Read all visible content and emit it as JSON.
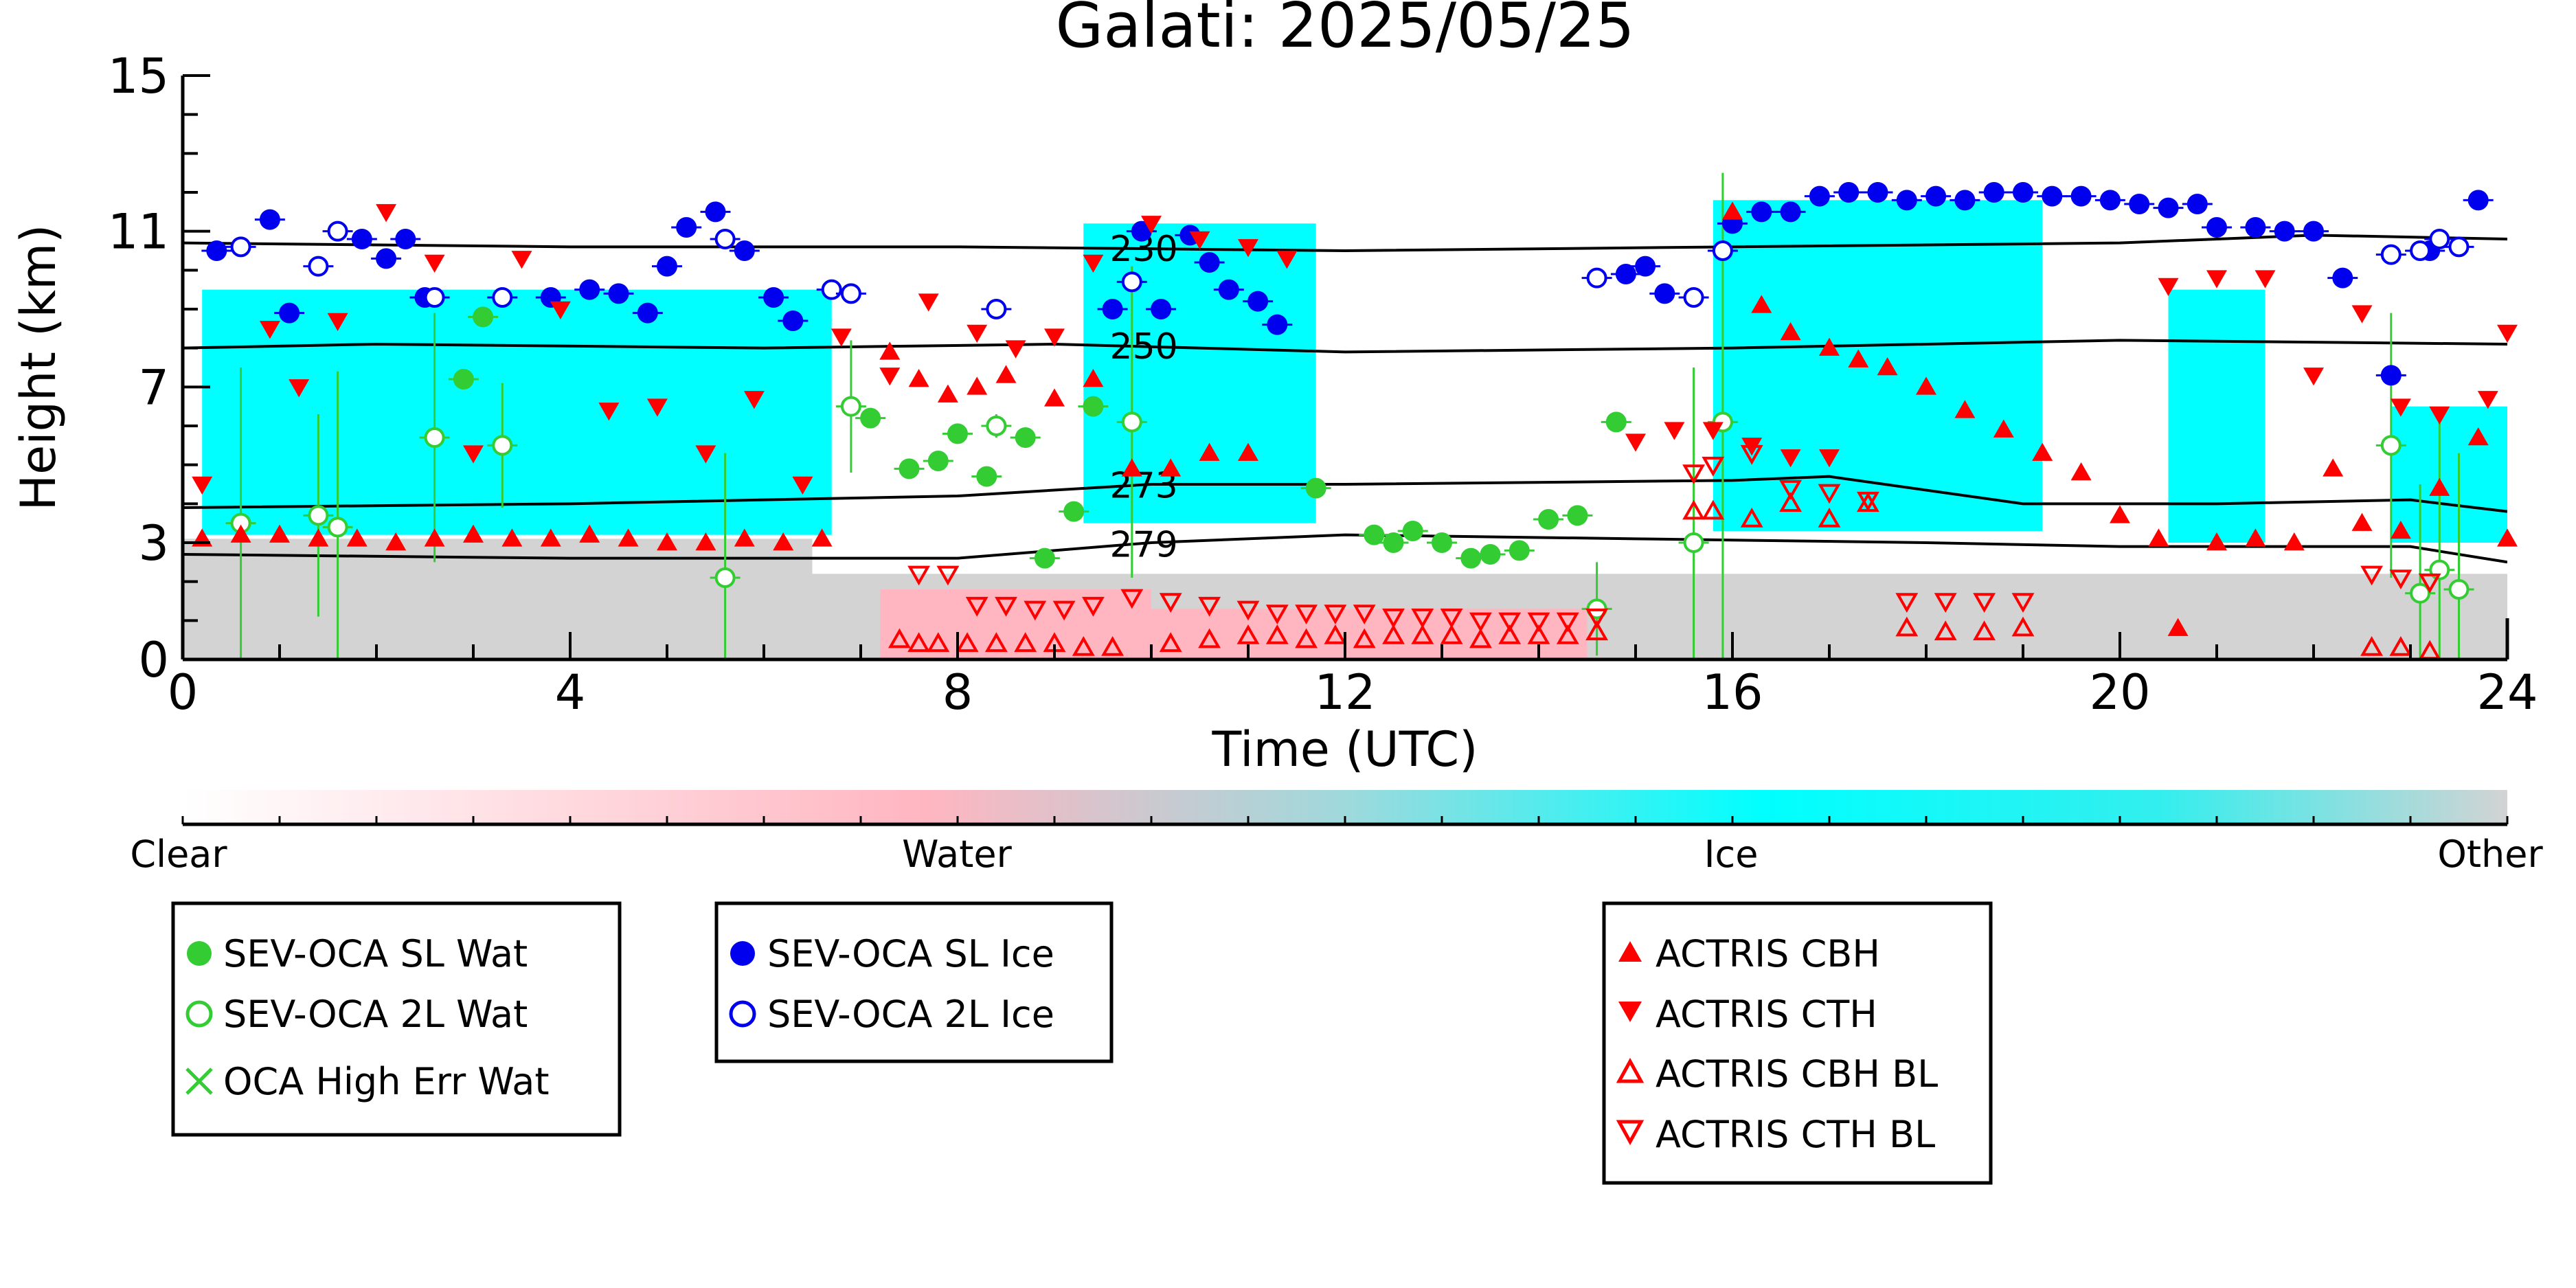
{
  "chart_data": {
    "type": "scatter",
    "title": "Galati: 2025/05/25",
    "xlabel": "Time (UTC)",
    "ylabel": "Height (km)",
    "xlim": [
      0,
      24
    ],
    "ylim": [
      0,
      15
    ],
    "xticks": [
      "0",
      "4",
      "8",
      "12",
      "16",
      "20",
      "24"
    ],
    "yticks": [
      "0",
      "3",
      "7",
      "11",
      "15"
    ],
    "colors": {
      "clear": "#ffffff",
      "water": "#ffb6c1",
      "ice": "#00ffff",
      "other": "#d3d3d3",
      "wat": "#33cc33",
      "ice_marker": "#0000ee",
      "actris": "#ff0000"
    },
    "colorbar": {
      "labels": [
        "Clear",
        "Water",
        "Ice",
        "Other"
      ]
    },
    "temperature_contours": [
      {
        "label": "230",
        "x": [
          0,
          4,
          8,
          12,
          16,
          20,
          22,
          24
        ],
        "y": [
          10.7,
          10.6,
          10.6,
          10.5,
          10.6,
          10.7,
          10.9,
          10.8
        ]
      },
      {
        "label": "250",
        "x": [
          0,
          2,
          6,
          9,
          12,
          16,
          20,
          24
        ],
        "y": [
          8.0,
          8.1,
          8.0,
          8.1,
          7.9,
          8.0,
          8.2,
          8.1
        ]
      },
      {
        "label": "273",
        "x": [
          0,
          4,
          8,
          10,
          12,
          16,
          17,
          19,
          21,
          23,
          24
        ],
        "y": [
          3.9,
          4.0,
          4.2,
          4.5,
          4.5,
          4.6,
          4.7,
          4.0,
          4.0,
          4.1,
          3.8
        ]
      },
      {
        "label": "279",
        "x": [
          0,
          4,
          8,
          10,
          12,
          15,
          18,
          20,
          23,
          24
        ],
        "y": [
          2.7,
          2.6,
          2.6,
          3.0,
          3.2,
          3.1,
          3.0,
          2.9,
          2.9,
          2.5
        ]
      }
    ],
    "classification_regions": [
      {
        "class": "other",
        "t": [
          0,
          6.5
        ],
        "ytop": 3.1
      },
      {
        "class": "other",
        "t": [
          6.5,
          24
        ],
        "ytop": 2.2
      },
      {
        "class": "water",
        "t": [
          7.2,
          10
        ],
        "ytop": 1.8
      },
      {
        "class": "water",
        "t": [
          10,
          14.5
        ],
        "ytop": 1.3
      },
      {
        "class": "ice",
        "t": [
          0.2,
          6.7
        ],
        "ybottom": 3.2,
        "ytop": 9.5
      },
      {
        "class": "ice",
        "t": [
          9.3,
          11.7
        ],
        "ybottom": 3.5,
        "ytop": 11.2
      },
      {
        "class": "ice",
        "t": [
          15.8,
          19.2
        ],
        "ybottom": 3.3,
        "ytop": 11.8
      },
      {
        "class": "ice",
        "t": [
          20.5,
          21.5
        ],
        "ybottom": 3.0,
        "ytop": 9.5
      },
      {
        "class": "ice",
        "t": [
          22.8,
          24
        ],
        "ybottom": 3.0,
        "ytop": 6.5
      }
    ],
    "series": [
      {
        "name": "SEV-OCA SL Wat",
        "marker": "filled-circle",
        "color": "#33cc33",
        "x": [
          3.1,
          2.9,
          7.1,
          7.5,
          7.8,
          8.0,
          8.3,
          8.7,
          8.9,
          9.2,
          9.4,
          11.7,
          12.3,
          12.5,
          12.7,
          13.0,
          13.3,
          13.5,
          13.8,
          14.1,
          14.4,
          14.8
        ],
        "y": [
          8.8,
          7.2,
          6.2,
          4.9,
          5.1,
          5.8,
          4.7,
          5.7,
          2.6,
          3.8,
          6.5,
          4.4,
          3.2,
          3.0,
          3.3,
          3.0,
          2.6,
          2.7,
          2.8,
          3.6,
          3.7,
          6.1
        ]
      },
      {
        "name": "SEV-OCA 2L Wat",
        "marker": "open-circle",
        "color": "#33cc33",
        "x": [
          0.6,
          1.4,
          1.6,
          2.6,
          3.3,
          5.6,
          6.9,
          8.4,
          9.8,
          14.6,
          15.6,
          15.9,
          22.8,
          23.1,
          23.3,
          23.5
        ],
        "y": [
          3.5,
          3.7,
          3.4,
          5.7,
          5.5,
          2.1,
          6.5,
          6.0,
          6.1,
          1.3,
          3.0,
          6.1,
          5.5,
          1.7,
          2.3,
          1.8
        ],
        "err": [
          4.0,
          2.6,
          4.0,
          3.2,
          1.6,
          3.2,
          1.7,
          0.3,
          4.0,
          1.2,
          4.5,
          6.4,
          3.4,
          2.8,
          4.0,
          3.5
        ]
      },
      {
        "name": "OCA High Err Wat",
        "marker": "x",
        "color": "#33cc33",
        "x": [],
        "y": []
      },
      {
        "name": "SEV-OCA SL Ice",
        "marker": "filled-circle",
        "color": "#0000ee",
        "x": [
          0.35,
          0.9,
          1.1,
          1.85,
          2.1,
          2.3,
          2.5,
          3.8,
          4.2,
          4.5,
          4.8,
          5.0,
          5.2,
          5.5,
          5.8,
          6.1,
          6.3,
          9.6,
          9.9,
          10.1,
          10.4,
          10.6,
          10.8,
          11.1,
          11.3,
          14.9,
          15.1,
          15.3,
          16.0,
          16.3,
          16.6,
          16.9,
          17.2,
          17.5,
          17.8,
          18.1,
          18.4,
          18.7,
          19.0,
          19.3,
          19.6,
          19.9,
          20.2,
          20.5,
          20.8,
          21.0,
          21.4,
          21.7,
          22.0,
          22.3,
          22.8,
          23.2,
          23.7
        ],
        "y": [
          10.5,
          11.3,
          8.9,
          10.8,
          10.3,
          10.8,
          9.3,
          9.3,
          9.5,
          9.4,
          8.9,
          10.1,
          11.1,
          11.5,
          10.5,
          9.3,
          8.7,
          9.0,
          11.0,
          9.0,
          10.9,
          10.2,
          9.5,
          9.2,
          8.6,
          9.9,
          10.1,
          9.4,
          11.2,
          11.5,
          11.5,
          11.9,
          12.0,
          12.0,
          11.8,
          11.9,
          11.8,
          12.0,
          12.0,
          11.9,
          11.9,
          11.8,
          11.7,
          11.6,
          11.7,
          11.1,
          11.1,
          11.0,
          11.0,
          9.8,
          7.3,
          10.5,
          11.8
        ],
        "err": []
      },
      {
        "name": "SEV-OCA 2L Ice",
        "marker": "open-circle",
        "color": "#0000ee",
        "x": [
          0.6,
          1.4,
          1.6,
          2.6,
          3.3,
          5.6,
          6.7,
          6.9,
          8.4,
          9.8,
          14.6,
          15.6,
          15.9,
          22.8,
          23.1,
          23.3,
          23.5
        ],
        "y": [
          10.6,
          10.1,
          11.0,
          9.3,
          9.3,
          10.8,
          9.5,
          9.4,
          9.0,
          9.7,
          9.8,
          9.3,
          10.5,
          10.4,
          10.5,
          10.8,
          10.6
        ]
      },
      {
        "name": "ACTRIS CBH",
        "marker": "triangle-up",
        "color": "#ff0000",
        "x": [
          0.2,
          0.6,
          1.0,
          1.4,
          1.8,
          2.2,
          2.6,
          3.0,
          3.4,
          3.8,
          4.2,
          4.6,
          5.0,
          5.4,
          5.8,
          6.2,
          6.6,
          7.3,
          7.6,
          7.9,
          8.2,
          8.5,
          9.0,
          9.4,
          9.8,
          10.2,
          10.6,
          11.0,
          16.0,
          16.3,
          16.6,
          17.0,
          17.3,
          17.6,
          18.0,
          18.4,
          18.8,
          19.2,
          19.6,
          20.0,
          20.4,
          20.6,
          21.0,
          21.4,
          21.8,
          22.2,
          22.5,
          22.9,
          23.3,
          23.7,
          24.0
        ],
        "y": [
          3.1,
          3.2,
          3.2,
          3.1,
          3.1,
          3.0,
          3.1,
          3.2,
          3.1,
          3.1,
          3.2,
          3.1,
          3.0,
          3.0,
          3.1,
          3.0,
          3.1,
          7.9,
          7.2,
          6.8,
          7.0,
          7.3,
          6.7,
          7.2,
          4.9,
          4.9,
          5.3,
          5.3,
          11.5,
          9.1,
          8.4,
          8.0,
          7.7,
          7.5,
          7.0,
          6.4,
          5.9,
          5.3,
          4.8,
          3.7,
          3.1,
          0.8,
          3.0,
          3.1,
          3.0,
          4.9,
          3.5,
          3.3,
          4.4,
          5.7,
          3.1
        ]
      },
      {
        "name": "ACTRIS CTH",
        "marker": "triangle-down",
        "color": "#ff0000",
        "x": [
          0.2,
          0.9,
          1.2,
          1.6,
          2.1,
          2.6,
          3.0,
          3.5,
          3.9,
          4.4,
          4.9,
          5.4,
          5.9,
          6.4,
          6.8,
          7.3,
          7.7,
          8.2,
          8.6,
          9.0,
          9.4,
          10.0,
          10.5,
          11.0,
          11.4,
          15.0,
          15.4,
          15.8,
          16.2,
          16.6,
          17.0,
          20.5,
          21.0,
          21.5,
          22.0,
          22.5,
          22.9,
          23.3,
          23.8,
          24.0
        ],
        "y": [
          4.5,
          8.5,
          7.0,
          8.7,
          11.5,
          10.2,
          5.3,
          10.3,
          9.0,
          6.4,
          6.5,
          5.3,
          6.7,
          4.5,
          8.3,
          7.3,
          9.2,
          8.4,
          8.0,
          8.3,
          10.2,
          11.2,
          10.8,
          10.6,
          10.3,
          5.6,
          5.9,
          5.9,
          5.5,
          5.2,
          5.2,
          9.6,
          9.8,
          9.8,
          7.3,
          8.9,
          6.5,
          6.3,
          6.7,
          8.4
        ]
      },
      {
        "name": "ACTRIS CBH BL",
        "marker": "open-triangle-up",
        "color": "#ff0000",
        "x": [
          7.4,
          7.6,
          7.8,
          8.1,
          8.4,
          8.7,
          9.0,
          9.3,
          9.6,
          10.2,
          10.6,
          11.0,
          11.3,
          11.6,
          11.9,
          12.2,
          12.5,
          12.8,
          13.1,
          13.4,
          13.7,
          14.0,
          14.3,
          14.6,
          15.6,
          15.8,
          16.2,
          16.6,
          17.0,
          17.4,
          17.8,
          18.2,
          18.6,
          19.0,
          22.6,
          22.9,
          23.2
        ],
        "y": [
          0.5,
          0.4,
          0.4,
          0.4,
          0.4,
          0.4,
          0.4,
          0.3,
          0.3,
          0.4,
          0.5,
          0.6,
          0.6,
          0.5,
          0.6,
          0.5,
          0.6,
          0.6,
          0.6,
          0.5,
          0.6,
          0.6,
          0.6,
          0.7,
          3.8,
          3.8,
          3.6,
          4.0,
          3.6,
          4.0,
          0.8,
          0.7,
          0.7,
          0.8,
          0.3,
          0.3,
          0.2
        ]
      },
      {
        "name": "ACTRIS CTH BL",
        "marker": "open-triangle-down",
        "color": "#ff0000",
        "x": [
          7.6,
          7.9,
          8.2,
          8.5,
          8.8,
          9.1,
          9.4,
          9.8,
          10.2,
          10.6,
          11.0,
          11.3,
          11.6,
          11.9,
          12.2,
          12.5,
          12.8,
          13.1,
          13.4,
          13.7,
          14.0,
          14.3,
          14.6,
          15.6,
          15.8,
          16.2,
          16.6,
          17.0,
          17.4,
          17.8,
          18.2,
          18.6,
          19.0,
          22.6,
          22.9,
          23.2
        ],
        "y": [
          2.2,
          2.2,
          1.4,
          1.4,
          1.3,
          1.3,
          1.4,
          1.6,
          1.5,
          1.4,
          1.3,
          1.2,
          1.2,
          1.2,
          1.2,
          1.1,
          1.1,
          1.1,
          1.0,
          1.0,
          1.0,
          1.0,
          1.1,
          4.8,
          5.0,
          5.3,
          4.4,
          4.3,
          4.1,
          1.5,
          1.5,
          1.5,
          1.5,
          2.2,
          2.1,
          2.0
        ]
      }
    ],
    "legends": [
      [
        "SEV-OCA SL Wat",
        "SEV-OCA 2L Wat",
        "OCA High Err Wat"
      ],
      [
        "SEV-OCA SL Ice",
        "SEV-OCA 2L Ice"
      ],
      [
        "ACTRIS CBH",
        "ACTRIS CTH",
        "ACTRIS CBH BL",
        "ACTRIS CTH BL"
      ]
    ]
  }
}
